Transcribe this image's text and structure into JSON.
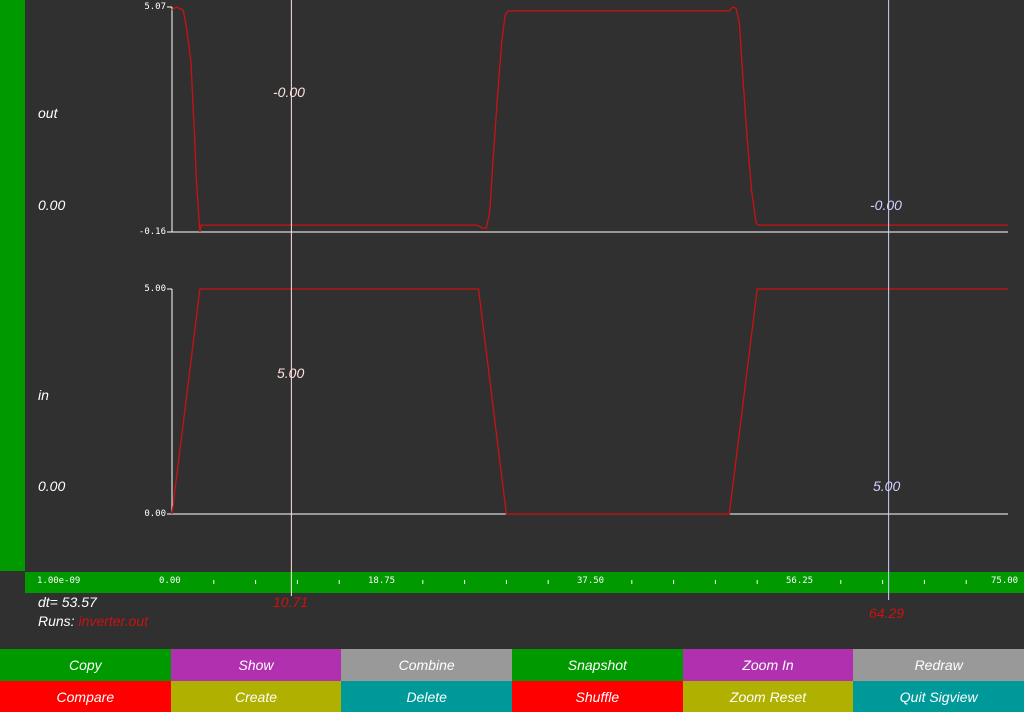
{
  "signals": [
    {
      "name": "out",
      "value": "0.00",
      "ymax_label": "5.07",
      "ymin_label": "-0.16",
      "cursor1_value": "-0.00",
      "cursor2_value": "-0.00"
    },
    {
      "name": "in",
      "value": "0.00",
      "ymax_label": "5.00",
      "ymin_label": "0.00",
      "cursor1_value": "5.00",
      "cursor2_value": "5.00"
    }
  ],
  "axis": {
    "scale_label": "1.00e-09",
    "tick_labels": [
      "0.00",
      "18.75",
      "37.50",
      "56.25",
      "75.00"
    ]
  },
  "cursors": {
    "cursor1": "10.71",
    "cursor2": "64.29",
    "dt_label": "dt= 53.57"
  },
  "runs": {
    "label": "Runs:",
    "value": "inverter.out"
  },
  "colors": {
    "trace": "#cc1111",
    "cursor1": "#ffe0e0",
    "cursor2": "#d0d0ff",
    "green": "#009900",
    "magenta": "#b030b0",
    "gray": "#999999",
    "red": "#ff0000",
    "olive": "#b0b000",
    "teal": "#009999"
  },
  "buttons_row1": [
    {
      "label": "Copy",
      "color": "#009900"
    },
    {
      "label": "Show",
      "color": "#b030b0"
    },
    {
      "label": "Combine",
      "color": "#999999"
    },
    {
      "label": "Snapshot",
      "color": "#009900"
    },
    {
      "label": "Zoom In",
      "color": "#b030b0"
    },
    {
      "label": "Redraw",
      "color": "#999999"
    }
  ],
  "buttons_row2": [
    {
      "label": "Compare",
      "color": "#ff0000"
    },
    {
      "label": "Create",
      "color": "#b0b000"
    },
    {
      "label": "Delete",
      "color": "#009999"
    },
    {
      "label": "Shuffle",
      "color": "#ff0000"
    },
    {
      "label": "Zoom Reset",
      "color": "#b0b000"
    },
    {
      "label": "Quit Sigview",
      "color": "#009999"
    }
  ],
  "chart_data": {
    "type": "line",
    "xlim": [
      0,
      75
    ],
    "x_ticks": [
      0,
      18.75,
      37.5,
      56.25,
      75
    ],
    "x_scale": "1.00e-09",
    "series": [
      {
        "name": "out",
        "ylim": [
          -0.16,
          5.07
        ],
        "points": [
          [
            0,
            5.0
          ],
          [
            0.4,
            5.07
          ],
          [
            1.0,
            5.0
          ],
          [
            1.3,
            4.6
          ],
          [
            1.7,
            3.8
          ],
          [
            2.0,
            2.2
          ],
          [
            2.2,
            1.0
          ],
          [
            2.4,
            0.2
          ],
          [
            2.5,
            -0.16
          ],
          [
            2.6,
            0.0
          ],
          [
            27.4,
            0.0
          ],
          [
            27.8,
            -0.07
          ],
          [
            28.2,
            -0.07
          ],
          [
            28.5,
            0.3
          ],
          [
            28.8,
            1.5
          ],
          [
            29.2,
            3.0
          ],
          [
            29.6,
            4.3
          ],
          [
            29.9,
            4.9
          ],
          [
            30.2,
            4.98
          ],
          [
            50.0,
            4.98
          ],
          [
            50.3,
            5.07
          ],
          [
            50.6,
            5.04
          ],
          [
            50.9,
            4.7
          ],
          [
            51.2,
            3.5
          ],
          [
            51.6,
            2.0
          ],
          [
            52.0,
            0.8
          ],
          [
            52.4,
            0.05
          ],
          [
            52.6,
            0.0
          ],
          [
            75,
            0.0
          ]
        ]
      },
      {
        "name": "in",
        "ylim": [
          0,
          5
        ],
        "points": [
          [
            0,
            0
          ],
          [
            2.5,
            5
          ],
          [
            27.5,
            5
          ],
          [
            30,
            0
          ],
          [
            50,
            0
          ],
          [
            52.5,
            5
          ],
          [
            75,
            5
          ]
        ]
      }
    ],
    "cursors": [
      10.71,
      64.29
    ]
  }
}
